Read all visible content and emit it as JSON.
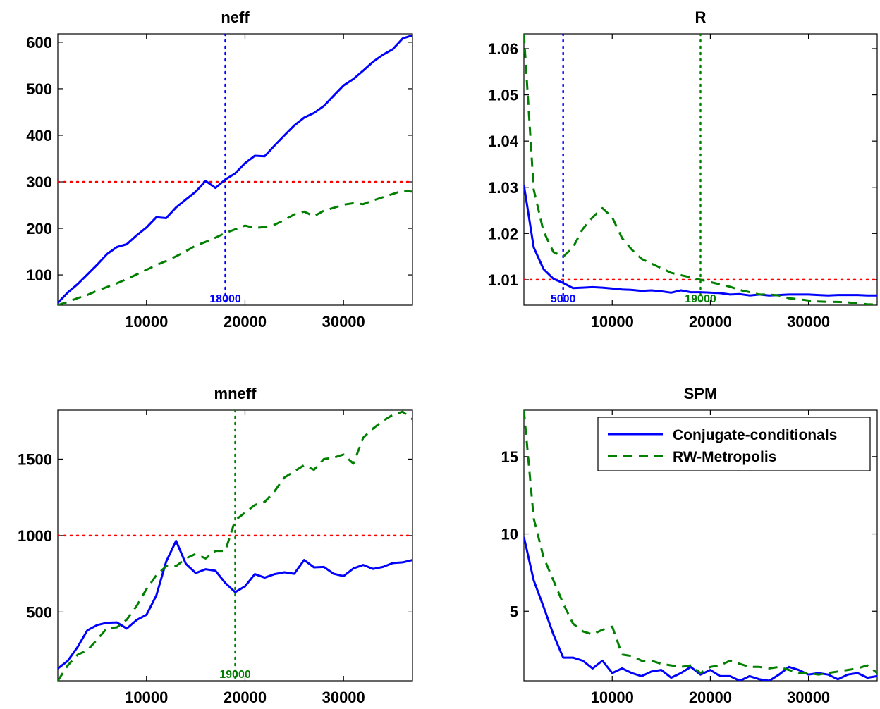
{
  "colors": {
    "conjugate": "#0000ff",
    "rw": "#007f00",
    "threshold": "#ff0000"
  },
  "legend": {
    "placement": "top-right",
    "entries": [
      "Conjugate-conditionals",
      "RW-Metropolis"
    ]
  },
  "chart_data": [
    {
      "type": "line",
      "title": "neff",
      "xlabel": "",
      "ylabel": "",
      "xlim": [
        1000,
        37000
      ],
      "ylim": [
        35,
        618
      ],
      "xticks": [
        10000,
        20000,
        30000
      ],
      "yticks": [
        100,
        200,
        300,
        400,
        500,
        600
      ],
      "grid": false,
      "threshold": 300,
      "vlines": [
        {
          "x": 18000,
          "label": "18000",
          "series": 0
        }
      ],
      "x": [
        1000,
        2000,
        3000,
        4000,
        5000,
        6000,
        7000,
        8000,
        9000,
        10000,
        11000,
        12000,
        13000,
        14000,
        15000,
        16000,
        17000,
        18000,
        19000,
        20000,
        21000,
        22000,
        23000,
        24000,
        25000,
        26000,
        27000,
        28000,
        29000,
        30000,
        31000,
        32000,
        33000,
        34000,
        35000,
        36000,
        37000
      ],
      "series": [
        {
          "name": "Conjugate-conditionals",
          "style": "solid",
          "values": [
            40,
            62,
            80,
            101,
            122,
            145,
            160,
            166,
            185,
            202,
            224,
            222,
            245,
            262,
            279,
            302,
            287,
            305,
            318,
            340,
            356,
            355,
            378,
            400,
            421,
            438,
            448,
            463,
            485,
            507,
            521,
            539,
            558,
            573,
            585,
            608,
            615
          ]
        },
        {
          "name": "RW-Metropolis",
          "style": "dashed",
          "values": [
            35,
            42,
            50,
            57,
            66,
            74,
            82,
            91,
            101,
            111,
            121,
            130,
            140,
            151,
            163,
            171,
            180,
            190,
            198,
            206,
            201,
            203,
            208,
            218,
            230,
            236,
            226,
            238,
            244,
            251,
            254,
            252,
            260,
            267,
            274,
            281,
            279
          ]
        }
      ]
    },
    {
      "type": "line",
      "title": "R",
      "xlabel": "",
      "ylabel": "",
      "xlim": [
        1000,
        37000
      ],
      "ylim": [
        1.0045,
        1.0632
      ],
      "xticks": [
        10000,
        20000,
        30000
      ],
      "yticks": [
        1.01,
        1.02,
        1.03,
        1.04,
        1.05,
        1.06
      ],
      "ytick_labels": [
        "1.01",
        "1.02",
        "1.03",
        "1.04",
        "1.05",
        "1.06"
      ],
      "grid": false,
      "threshold": 1.01,
      "vlines": [
        {
          "x": 5000,
          "label": "5000",
          "series": 0
        },
        {
          "x": 19000,
          "label": "19000",
          "series": 1
        }
      ],
      "x": [
        1000,
        2000,
        3000,
        4000,
        5000,
        6000,
        7000,
        8000,
        9000,
        10000,
        11000,
        12000,
        13000,
        14000,
        15000,
        16000,
        17000,
        18000,
        19000,
        20000,
        21000,
        22000,
        23000,
        24000,
        25000,
        26000,
        27000,
        28000,
        29000,
        30000,
        31000,
        32000,
        33000,
        34000,
        35000,
        36000,
        37000
      ],
      "series": [
        {
          "name": "Conjugate-conditionals",
          "style": "solid",
          "values": [
            1.0305,
            1.017,
            1.0123,
            1.0102,
            1.0093,
            1.0082,
            1.0083,
            1.0084,
            1.0083,
            1.0081,
            1.0079,
            1.0078,
            1.0076,
            1.0077,
            1.0075,
            1.0072,
            1.0077,
            1.0073,
            1.0073,
            1.0072,
            1.0071,
            1.0068,
            1.0069,
            1.0066,
            1.0068,
            1.0066,
            1.0067,
            1.0068,
            1.0068,
            1.0068,
            1.0067,
            1.0066,
            1.0067,
            1.0067,
            1.0067,
            1.0066,
            1.0066
          ]
        },
        {
          "name": "RW-Metropolis",
          "style": "dashed",
          "values": [
            1.0632,
            1.0295,
            1.0205,
            1.016,
            1.015,
            1.017,
            1.021,
            1.0235,
            1.0255,
            1.0235,
            1.019,
            1.0165,
            1.0145,
            1.0135,
            1.0125,
            1.0115,
            1.011,
            1.0105,
            1.01,
            1.0095,
            1.009,
            1.0085,
            1.0078,
            1.0073,
            1.0068,
            1.0068,
            1.0066,
            1.006,
            1.0058,
            1.0055,
            1.0053,
            1.0052,
            1.0052,
            1.0051,
            1.0049,
            1.0047,
            1.0046
          ]
        }
      ]
    },
    {
      "type": "line",
      "title": "mneff",
      "xlabel": "",
      "ylabel": "",
      "xlim": [
        1000,
        37000
      ],
      "ylim": [
        50,
        1820
      ],
      "xticks": [
        10000,
        20000,
        30000
      ],
      "yticks": [
        500,
        1000,
        1500
      ],
      "grid": false,
      "threshold": 1000,
      "vlines": [
        {
          "x": 19000,
          "label": "19000",
          "series": 1
        }
      ],
      "x": [
        1000,
        2000,
        3000,
        4000,
        5000,
        6000,
        7000,
        8000,
        9000,
        10000,
        11000,
        12000,
        13000,
        14000,
        15000,
        16000,
        17000,
        18000,
        19000,
        20000,
        21000,
        22000,
        23000,
        24000,
        25000,
        26000,
        27000,
        28000,
        29000,
        30000,
        31000,
        32000,
        33000,
        34000,
        35000,
        36000,
        37000
      ],
      "series": [
        {
          "name": "Conjugate-conditionals",
          "style": "solid",
          "values": [
            130,
            180,
            270,
            380,
            415,
            430,
            432,
            392,
            448,
            482,
            608,
            830,
            965,
            815,
            755,
            780,
            770,
            690,
            630,
            668,
            748,
            725,
            748,
            760,
            750,
            840,
            792,
            795,
            750,
            735,
            785,
            808,
            782,
            795,
            820,
            825,
            840
          ]
        },
        {
          "name": "RW-Metropolis",
          "style": "dashed",
          "values": [
            50,
            150,
            220,
            250,
            320,
            395,
            400,
            450,
            540,
            650,
            740,
            800,
            800,
            850,
            880,
            850,
            900,
            900,
            1100,
            1150,
            1200,
            1220,
            1290,
            1380,
            1420,
            1460,
            1430,
            1500,
            1510,
            1530,
            1470,
            1640,
            1700,
            1750,
            1790,
            1810,
            1760
          ]
        }
      ]
    },
    {
      "type": "line",
      "title": "SPM",
      "xlabel": "",
      "ylabel": "",
      "xlim": [
        1000,
        37000
      ],
      "ylim": [
        0.5,
        18
      ],
      "xticks": [
        10000,
        20000,
        30000
      ],
      "yticks": [
        5,
        10,
        15
      ],
      "grid": false,
      "legend": true,
      "x": [
        1000,
        2000,
        3000,
        4000,
        5000,
        6000,
        7000,
        8000,
        9000,
        10000,
        11000,
        12000,
        13000,
        14000,
        15000,
        16000,
        17000,
        18000,
        19000,
        20000,
        21000,
        22000,
        23000,
        24000,
        25000,
        26000,
        27000,
        28000,
        29000,
        30000,
        31000,
        32000,
        33000,
        34000,
        35000,
        36000,
        37000
      ],
      "series": [
        {
          "name": "Conjugate-conditionals",
          "style": "solid",
          "values": [
            9.8,
            7.0,
            5.3,
            3.5,
            2.0,
            2.0,
            1.8,
            1.3,
            1.8,
            1.0,
            1.3,
            1.0,
            0.8,
            1.1,
            1.2,
            0.7,
            1.0,
            1.4,
            0.9,
            1.2,
            0.8,
            0.8,
            0.5,
            0.8,
            0.6,
            0.5,
            0.9,
            1.4,
            1.2,
            0.9,
            1.0,
            0.9,
            0.6,
            0.9,
            1.0,
            0.7,
            0.8
          ]
        },
        {
          "name": "RW-Metropolis",
          "style": "dashed",
          "values": [
            18.0,
            11.0,
            8.5,
            7.0,
            5.5,
            4.2,
            3.7,
            3.5,
            3.8,
            4.0,
            2.2,
            2.1,
            1.8,
            1.8,
            1.6,
            1.5,
            1.4,
            1.5,
            1.0,
            1.4,
            1.5,
            1.8,
            1.6,
            1.4,
            1.4,
            1.3,
            1.4,
            1.2,
            1.0,
            1.0,
            0.9,
            1.0,
            1.1,
            1.2,
            1.3,
            1.5,
            1.0
          ]
        }
      ]
    }
  ]
}
